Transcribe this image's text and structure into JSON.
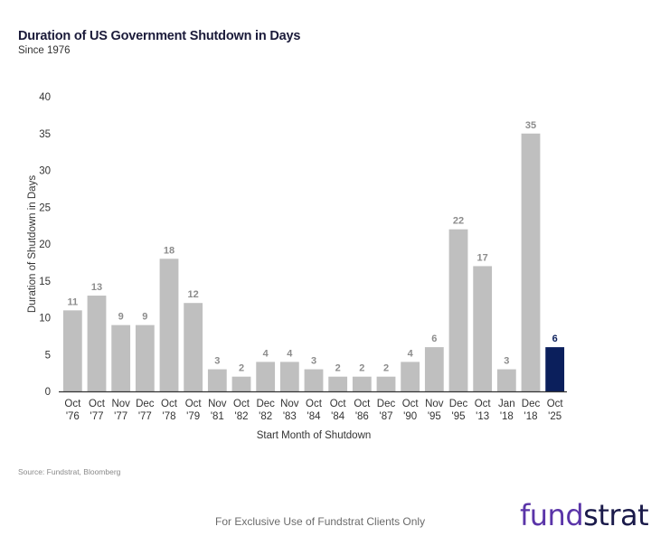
{
  "header": {
    "title": "Duration of US Government Shutdown in Days",
    "subtitle": "Since 1976"
  },
  "chart_data": {
    "type": "bar",
    "title": "Duration of US Government Shutdown in Days",
    "subtitle": "Since 1976",
    "xlabel": "Start Month of Shutdown",
    "ylabel": "Duration of Shutdown in Days",
    "ylim": [
      0,
      40
    ],
    "yticks": [
      0,
      5,
      10,
      15,
      20,
      25,
      30,
      35,
      40
    ],
    "grid": false,
    "categories": [
      [
        "Oct",
        "'76"
      ],
      [
        "Oct",
        "'77"
      ],
      [
        "Nov",
        "'77"
      ],
      [
        "Dec",
        "'77"
      ],
      [
        "Oct",
        "'78"
      ],
      [
        "Oct",
        "'79"
      ],
      [
        "Nov",
        "'81"
      ],
      [
        "Oct",
        "'82"
      ],
      [
        "Dec",
        "'82"
      ],
      [
        "Nov",
        "'83"
      ],
      [
        "Oct",
        "'84"
      ],
      [
        "Oct",
        "'84"
      ],
      [
        "Oct",
        "'86"
      ],
      [
        "Dec",
        "'87"
      ],
      [
        "Oct",
        "'90"
      ],
      [
        "Nov",
        "'95"
      ],
      [
        "Dec",
        "'95"
      ],
      [
        "Oct",
        "'13"
      ],
      [
        "Jan",
        "'18"
      ],
      [
        "Dec",
        "'18"
      ],
      [
        "Oct",
        "'25"
      ]
    ],
    "values": [
      11,
      13,
      9,
      9,
      18,
      12,
      3,
      2,
      4,
      4,
      3,
      2,
      2,
      2,
      4,
      6,
      22,
      17,
      3,
      35,
      6
    ],
    "highlight_index": 20,
    "colors": {
      "bar": "#bfbfbf",
      "highlight": "#0b1f5c",
      "label": "#8c8c8c",
      "highlight_label": "#0b1f5c",
      "axis": "#333333",
      "text": "#333333"
    }
  },
  "source": "Source: Fundstrat, Bloomberg",
  "footer": "For Exclusive Use of Fundstrat Clients Only",
  "logo": {
    "part1": "fund",
    "part2": "strat",
    "color1": "#5a34a8",
    "color2": "#1a1a4a"
  }
}
